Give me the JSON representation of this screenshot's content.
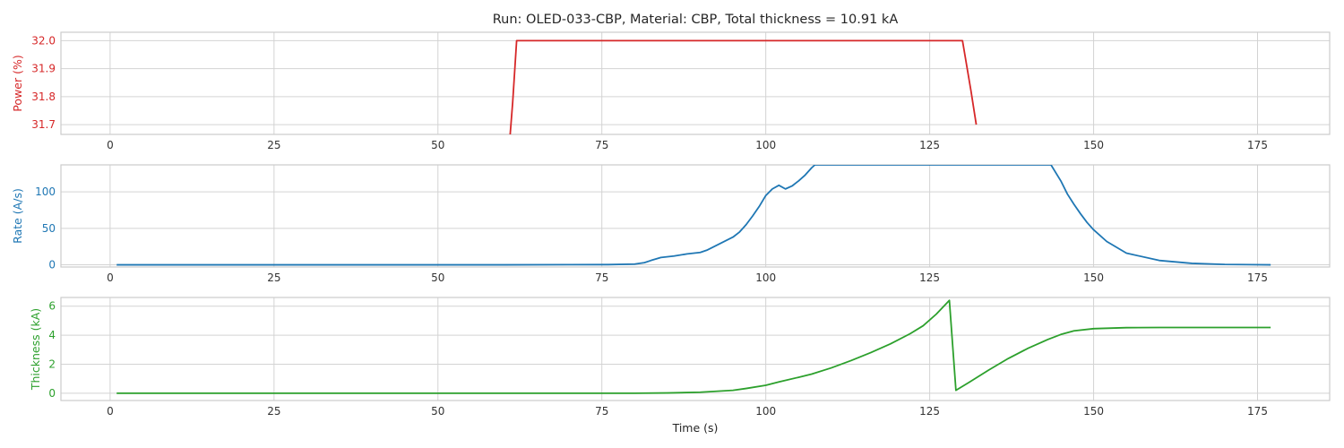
{
  "chart_data": {
    "type": "line",
    "title": "Run: OLED-033-CBP, Material: CBP, Total thickness = 10.91 kA",
    "xlabel": "Time (s)",
    "xlim": [
      -7.5,
      186
    ],
    "x_ticks": [
      0,
      25,
      50,
      75,
      100,
      125,
      150,
      175
    ],
    "grid": true,
    "subplots": [
      {
        "ylabel": "Power (%)",
        "color": "#d62728",
        "ylim": [
          31.665,
          32.03
        ],
        "y_ticks": [
          31.7,
          31.8,
          31.9,
          32.0
        ],
        "y_tick_labels": [
          "31.7",
          "31.8",
          "31.9",
          "32.0"
        ],
        "series": [
          {
            "x": [
              61,
              61.4,
              62,
              130,
              131.3,
              132.1
            ],
            "y": [
              31.66,
              31.78,
              32.0,
              32.0,
              31.82,
              31.7
            ]
          }
        ]
      },
      {
        "ylabel": "Rate (A/s)",
        "color": "#1f77b4",
        "ylim": [
          -3,
          137
        ],
        "y_ticks": [
          0,
          50,
          100
        ],
        "y_tick_labels": [
          "0",
          "50",
          "100"
        ],
        "series": [
          {
            "x": [
              1,
              60,
              76,
              80,
              81.5,
              82.5,
              84,
              86,
              88,
              90,
              91,
              93,
              95,
              96,
              97,
              98,
              99,
              100,
              101,
              102,
              103,
              104,
              105,
              106,
              107,
              107.5,
              143.5,
              145,
              146,
              147,
              148,
              149,
              150,
              152,
              155,
              160,
              165,
              170,
              177
            ],
            "y": [
              0,
              0,
              0.3,
              1,
              3,
              6,
              10,
              12,
              15,
              17,
              20,
              29,
              38,
              45,
              55,
              67,
              80,
              95,
              104,
              109,
              104,
              108,
              115,
              123,
              133,
              137,
              137,
              115,
              97,
              83,
              70,
              58,
              48,
              32,
              16,
              6,
              2,
              0.5,
              0
            ]
          }
        ]
      },
      {
        "ylabel": "Thickness (kA)",
        "color": "#2ca02c",
        "ylim": [
          -0.5,
          6.6
        ],
        "y_ticks": [
          0,
          2,
          4,
          6
        ],
        "y_tick_labels": [
          "0",
          "2",
          "4",
          "6"
        ],
        "series": [
          {
            "x": [
              1,
              80,
              85,
              90,
              95,
              97,
              100,
              102,
              105,
              107,
              110,
              113,
              116,
              119,
              122,
              124,
              126,
              128,
              129,
              131,
              134,
              137,
              140,
              143,
              145,
              147,
              150,
              155,
              160,
              170,
              177
            ],
            "y": [
              0,
              0,
              0.02,
              0.07,
              0.2,
              0.33,
              0.55,
              0.78,
              1.1,
              1.32,
              1.75,
              2.25,
              2.8,
              3.4,
              4.1,
              4.65,
              5.45,
              6.4,
              0.2,
              0.75,
              1.6,
              2.4,
              3.1,
              3.7,
              4.05,
              4.3,
              4.45,
              4.52,
              4.53,
              4.53,
              4.53
            ]
          }
        ]
      }
    ]
  }
}
